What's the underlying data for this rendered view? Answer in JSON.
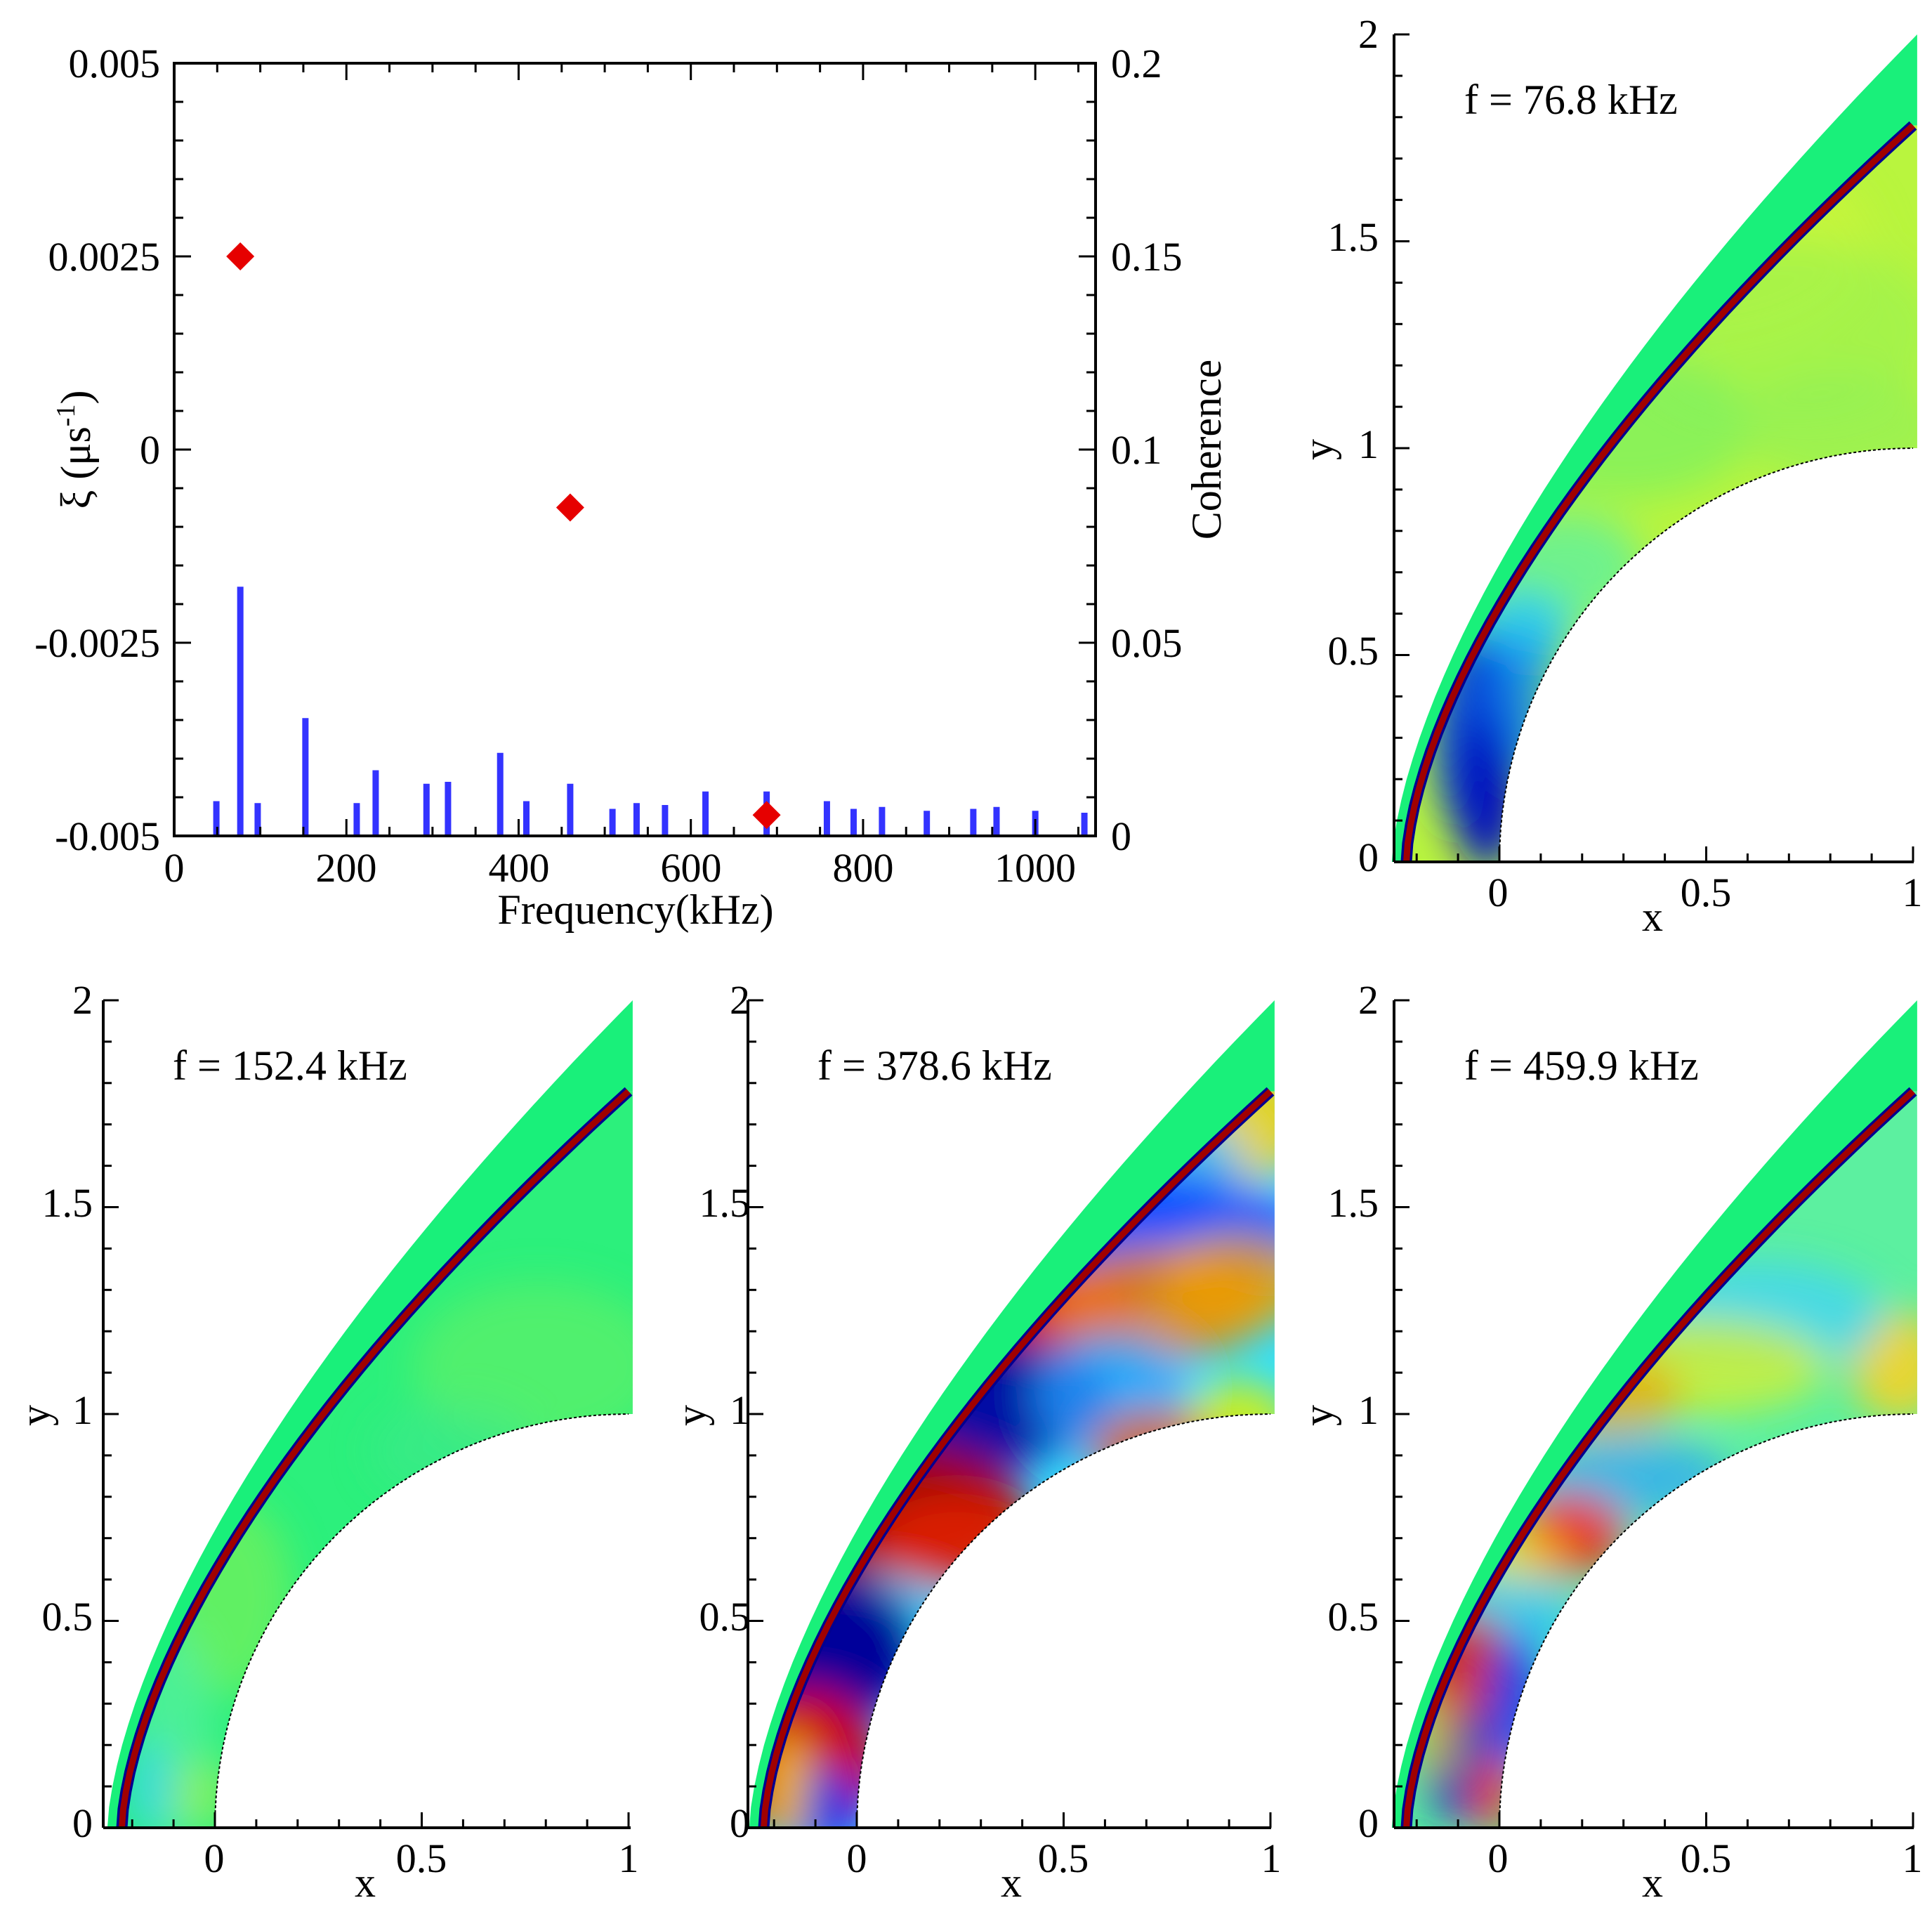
{
  "colors": {
    "bar": "#3333ff",
    "marker": "#e60000",
    "freestream": "#19f07a",
    "shock": "#a00000",
    "shock_dark": "#000090",
    "cmap_low": "#00008f",
    "cmap_mid": "#10ff80",
    "cmap_high": "#8f0000"
  },
  "chart_data": [
    {
      "type": "bar+scatter",
      "xlabel": "Frequency(kHz)",
      "ylabel_left": "ξ (μs⁻¹)",
      "ylabel_left_symbol": "ξ (μs",
      "ylabel_left_sup": "-1",
      "ylabel_left_close": ")",
      "ylabel_right": "Coherence",
      "xlim": [
        0,
        1070
      ],
      "ylim_left": [
        -0.005,
        0.005
      ],
      "ylim_right": [
        0,
        0.2
      ],
      "x_ticks": [
        "0",
        "200",
        "400",
        "600",
        "800",
        "1000"
      ],
      "y_left_ticks": [
        "0.005",
        "0.0025",
        "0",
        "-0.0025",
        "-0.005"
      ],
      "y_right_ticks": [
        "0.2",
        "0.15",
        "0.1",
        "0.05",
        "0"
      ],
      "bars": {
        "name": "Coherence",
        "x": [
          49,
          76.8,
          97,
          152.4,
          212,
          234,
          293,
          318,
          378.6,
          409,
          459.9,
          509,
          537,
          570,
          617,
          688,
          758,
          789,
          822,
          874,
          928,
          955,
          1000,
          1057
        ],
        "values": [
          0.009,
          0.0645,
          0.0085,
          0.0305,
          0.0085,
          0.017,
          0.0135,
          0.014,
          0.0215,
          0.009,
          0.0135,
          0.007,
          0.0085,
          0.008,
          0.0115,
          0.0115,
          0.009,
          0.007,
          0.0075,
          0.0065,
          0.007,
          0.0075,
          0.0065,
          0.006
        ]
      },
      "markers": {
        "name": "ξ",
        "x": [
          76.8,
          459.9,
          688
        ],
        "y": [
          0.0025,
          -0.00075,
          -0.00473
        ]
      }
    },
    {
      "type": "heatmap",
      "panel": "f1",
      "title": "f = 76.8 kHz",
      "xlabel": "x",
      "ylabel": "y",
      "xlim": [
        -0.26,
        1.01
      ],
      "ylim": [
        0,
        2
      ],
      "x_ticks": [
        "0",
        "0.5",
        "1"
      ],
      "y_ticks": [
        "0",
        "0.5",
        "1",
        "1.5",
        "2"
      ]
    },
    {
      "type": "heatmap",
      "panel": "f2",
      "title": "f = 152.4 kHz",
      "xlabel": "x",
      "ylabel": "y",
      "xlim": [
        -0.26,
        1.01
      ],
      "ylim": [
        0,
        2
      ],
      "x_ticks": [
        "0",
        "0.5",
        "1"
      ],
      "y_ticks": [
        "0",
        "0.5",
        "1",
        "1.5",
        "2"
      ]
    },
    {
      "type": "heatmap",
      "panel": "f3",
      "title": "f = 378.6 kHz",
      "xlabel": "x",
      "ylabel": "y",
      "xlim": [
        -0.26,
        1.01
      ],
      "ylim": [
        0,
        2
      ],
      "x_ticks": [
        "0",
        "0.5",
        "1"
      ],
      "y_ticks": [
        "0",
        "0.5",
        "1",
        "1.5",
        "2"
      ]
    },
    {
      "type": "heatmap",
      "panel": "f4",
      "title": "f = 459.9 kHz",
      "xlabel": "x",
      "ylabel": "y",
      "xlim": [
        -0.26,
        1.01
      ],
      "ylim": [
        0,
        2
      ],
      "x_ticks": [
        "0",
        "0.5",
        "1"
      ],
      "y_ticks": [
        "0",
        "0.5",
        "1",
        "1.5",
        "2"
      ]
    }
  ]
}
